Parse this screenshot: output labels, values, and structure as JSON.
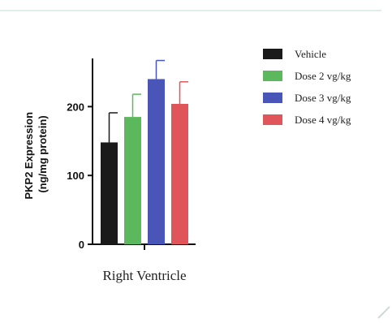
{
  "chart_data": {
    "type": "bar",
    "categories": [
      "Right Ventricle"
    ],
    "xlabel": "Right Ventricle",
    "ylabel": "PKP2 Expression\n(ng/mg protein)",
    "yticks": [
      0,
      100,
      200
    ],
    "ylim": [
      0,
      270
    ],
    "grid": false,
    "legend_position": "right",
    "series": [
      {
        "name": "Vehicle",
        "values": [
          148
        ],
        "error": [
          43
        ],
        "color": "#1a1a1a"
      },
      {
        "name": "Dose 2 vg/kg",
        "values": [
          185
        ],
        "error": [
          33
        ],
        "color": "#5cb85c"
      },
      {
        "name": "Dose 3 vg/kg",
        "values": [
          240
        ],
        "error": [
          27
        ],
        "color": "#4a55b8"
      },
      {
        "name": "Dose 4 vg/kg",
        "values": [
          204
        ],
        "error": [
          32
        ],
        "color": "#e0555a"
      }
    ]
  }
}
